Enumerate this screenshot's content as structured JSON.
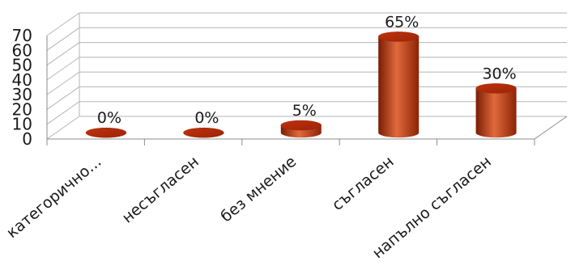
{
  "chart_data": {
    "type": "bar",
    "style": "3d-cylinder",
    "categories": [
      "категорично...",
      "несъгласен",
      "без мнение",
      "съгласен",
      "напълно съгласен"
    ],
    "values": [
      0,
      0,
      5,
      65,
      30
    ],
    "data_labels": [
      "0%",
      "0%",
      "5%",
      "65%",
      "30%"
    ],
    "yticks": [
      "0",
      "10",
      "20",
      "30",
      "40",
      "50",
      "60",
      "70"
    ],
    "ylim": [
      0,
      70
    ],
    "grid": true,
    "colors": {
      "bar_main": "#c0320c",
      "bar_light": "#e06a3c",
      "bar_dark": "#7a1c04",
      "grid": "#b5b5b5",
      "axis": "#8c8c8c"
    }
  }
}
